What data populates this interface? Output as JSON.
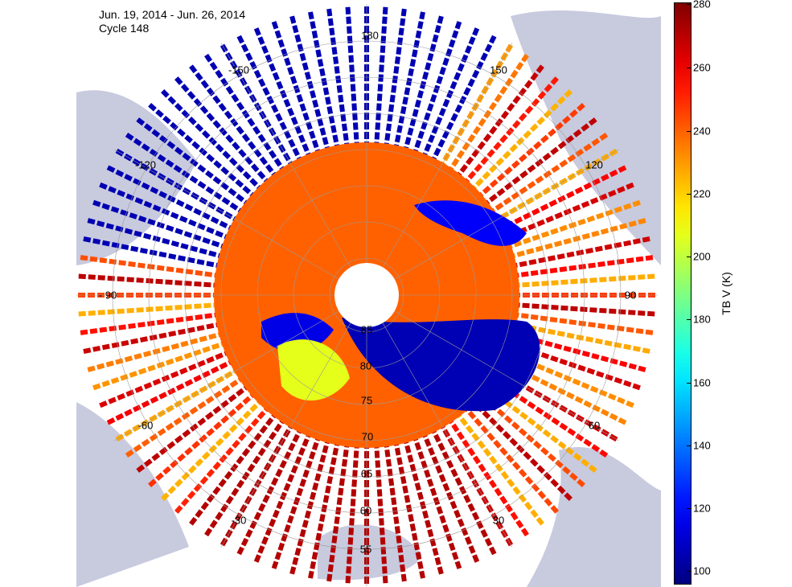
{
  "header": {
    "date_range": "Jun. 19, 2014 - Jun. 26, 2014",
    "cycle": "Cycle 148"
  },
  "colorbar": {
    "label": "TB V (K)",
    "ticks": [
      "280",
      "260",
      "240",
      "220",
      "200",
      "180",
      "160",
      "140",
      "120",
      "100"
    ],
    "range": [
      95,
      280
    ],
    "colormap": "jet"
  },
  "map": {
    "projection": "north polar stereographic",
    "land_color": "#c8cade",
    "latitude_labels": [
      "85",
      "80",
      "75",
      "70",
      "65",
      "60",
      "55"
    ],
    "longitude_labels": {
      "lon_180": "180",
      "lon_150w": "-150",
      "lon_150e": "150",
      "lon_120w": "-120",
      "lon_120e": "120",
      "lon_90w": "- 90",
      "lon_90e": "90",
      "lon_60w": "-60",
      "lon_60e": "60",
      "lon_30w": "-30",
      "lon_30e": "30"
    }
  },
  "colors": {
    "swath_high": "#b20000",
    "swath_mid": "#ff7a00",
    "ice_low": "#0000b4",
    "pole_hole": "#ffffff"
  }
}
